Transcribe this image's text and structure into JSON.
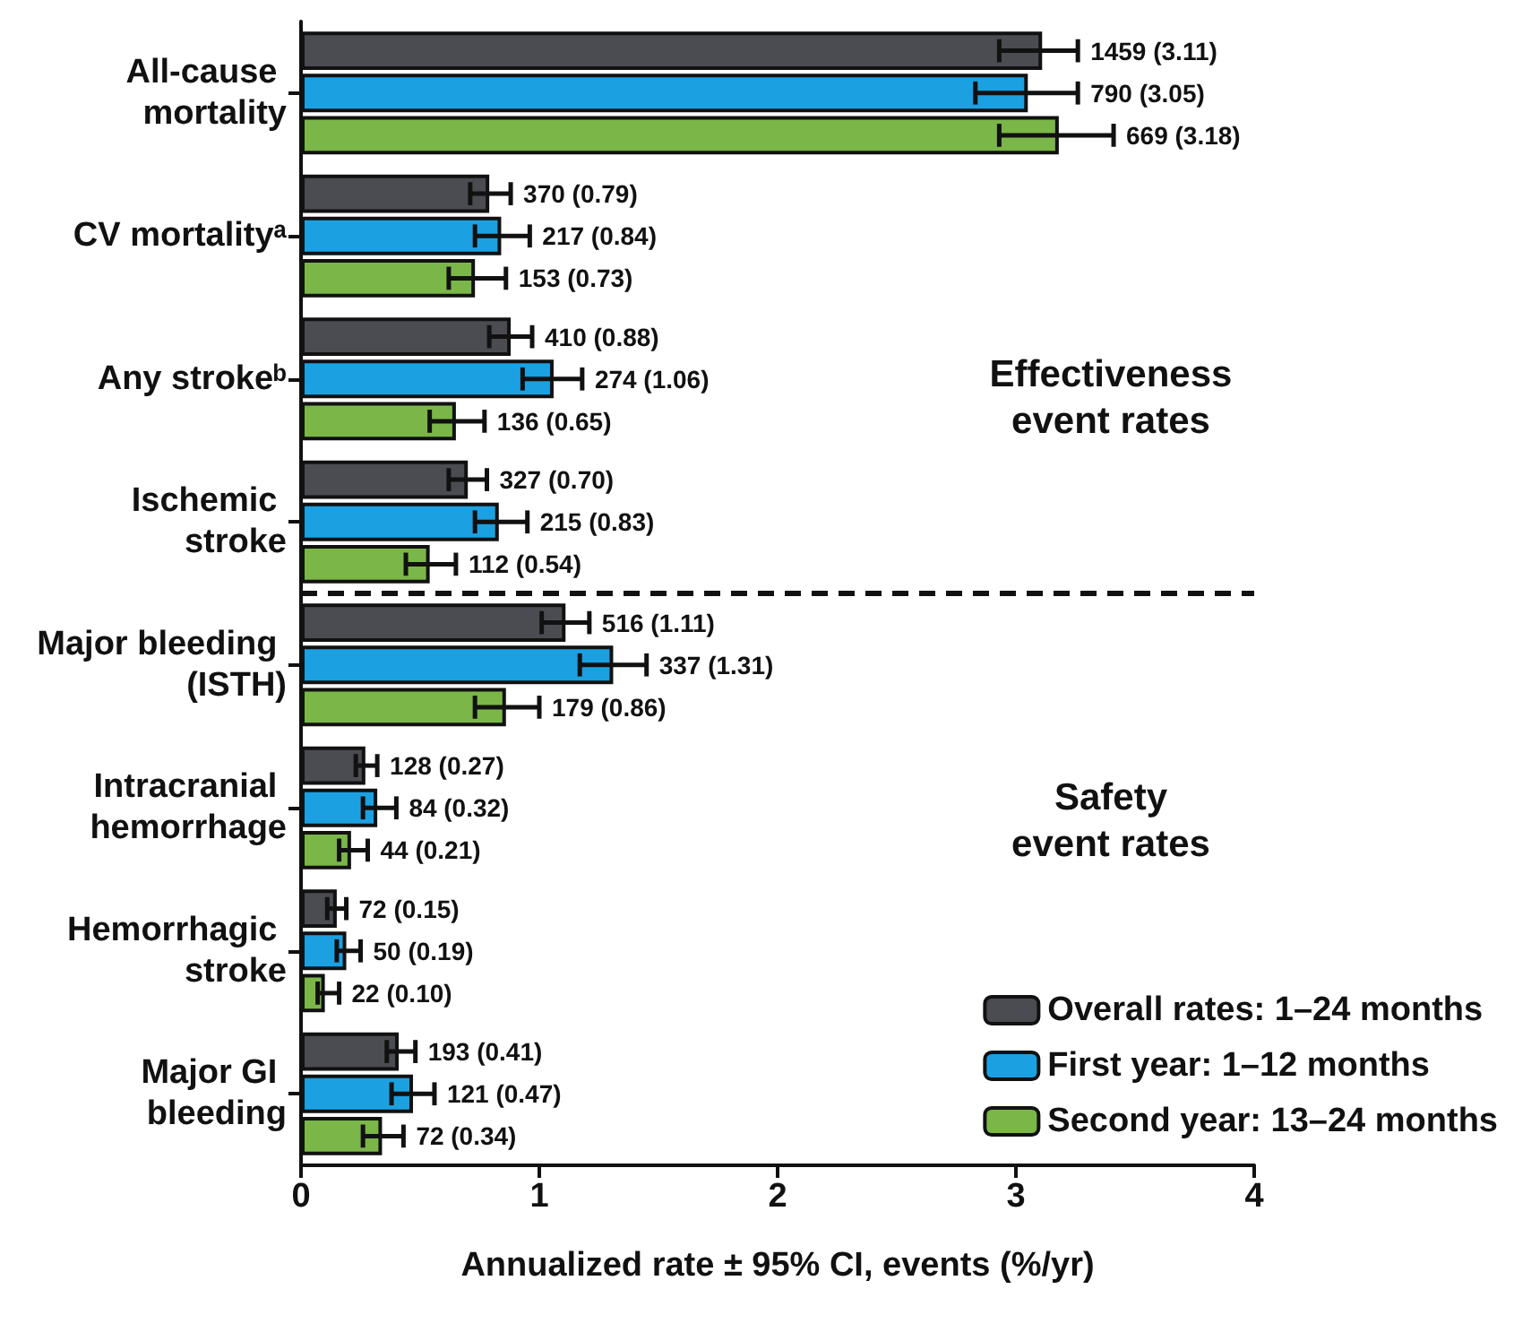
{
  "chart_data": {
    "type": "bar",
    "orientation": "horizontal",
    "xlabel": "Annualized rate ± 95% CI, events (%/yr)",
    "categories": [
      "All-cause mortality",
      "CV mortalityᵃ",
      "Any strokeᵇ",
      "Ischemic stroke",
      "Major bleeding (ISTH)",
      "Intracranial hemorrhage",
      "Hemorrhagic stroke",
      "Major GI bleeding"
    ],
    "series": [
      {
        "name": "Overall rates: 1–24 months",
        "color": "#4a4c52",
        "values": [
          3.11,
          0.79,
          0.88,
          0.7,
          1.11,
          0.27,
          0.15,
          0.41
        ],
        "errors": [
          [
            2.93,
            3.26
          ],
          [
            0.71,
            0.88
          ],
          [
            0.79,
            0.97
          ],
          [
            0.62,
            0.78
          ],
          [
            1.01,
            1.21
          ],
          [
            0.23,
            0.32
          ],
          [
            0.11,
            0.19
          ],
          [
            0.36,
            0.48
          ]
        ],
        "value_labels": [
          "1459 (3.11)",
          "370 (0.79)",
          "410 (0.88)",
          "327 (0.70)",
          "516 (1.11)",
          "128 (0.27)",
          "72 (0.15)",
          "193 (0.41)"
        ]
      },
      {
        "name": "First year: 1–12 months",
        "color": "#1ba1e2",
        "values": [
          3.05,
          0.84,
          1.06,
          0.83,
          1.31,
          0.32,
          0.19,
          0.47
        ],
        "errors": [
          [
            2.83,
            3.26
          ],
          [
            0.73,
            0.96
          ],
          [
            0.93,
            1.18
          ],
          [
            0.73,
            0.95
          ],
          [
            1.17,
            1.45
          ],
          [
            0.26,
            0.4
          ],
          [
            0.15,
            0.25
          ],
          [
            0.38,
            0.56
          ]
        ],
        "value_labels": [
          "790 (3.05)",
          "217 (0.84)",
          "274 (1.06)",
          "215 (0.83)",
          "337 (1.31)",
          "84 (0.32)",
          "50 (0.19)",
          "121 (0.47)"
        ]
      },
      {
        "name": "Second year: 13–24 months",
        "color": "#7ab648",
        "values": [
          3.18,
          0.73,
          0.65,
          0.54,
          0.86,
          0.21,
          0.1,
          0.34
        ],
        "errors": [
          [
            2.93,
            3.41
          ],
          [
            0.62,
            0.86
          ],
          [
            0.54,
            0.77
          ],
          [
            0.44,
            0.65
          ],
          [
            0.73,
            1.0
          ],
          [
            0.16,
            0.28
          ],
          [
            0.07,
            0.16
          ],
          [
            0.26,
            0.43
          ]
        ],
        "value_labels": [
          "669 (3.18)",
          "153 (0.73)",
          "136 (0.65)",
          "112 (0.54)",
          "179 (0.86)",
          "44 (0.21)",
          "22 (0.10)",
          "72 (0.34)"
        ]
      }
    ],
    "xlim": [
      0,
      4
    ],
    "xticks": [
      0,
      1,
      2,
      3,
      4
    ],
    "grid": false,
    "legend": "bottom right",
    "annotations": [
      "Effectiveness event rates",
      "Safety event rates"
    ]
  }
}
